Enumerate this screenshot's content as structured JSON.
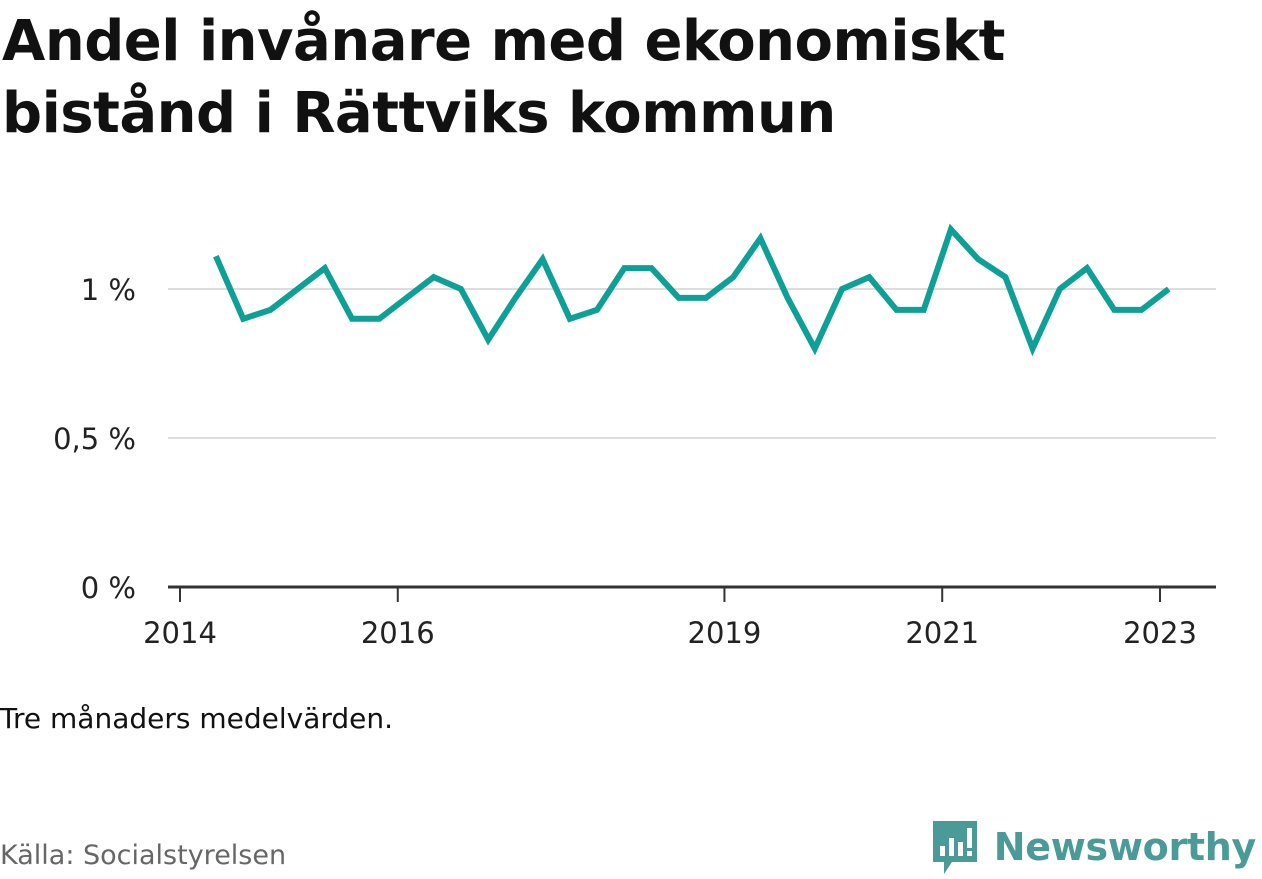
{
  "title": "Andel invånare med ekonomiskt bistånd i Rättviks kommun",
  "note": "Tre månaders medelvärden.",
  "source": "Källa: Socialstyrelsen",
  "brand": {
    "name": "Newsworthy",
    "color": "#4a9b97"
  },
  "colors": {
    "line": "#0ea096",
    "grid": "#dddddd",
    "axis": "#333333"
  },
  "chart_data": {
    "type": "line",
    "title": "Andel invånare med ekonomiskt bistånd i Rättviks kommun",
    "xlabel": "",
    "ylabel": "",
    "ylim": [
      0,
      1.25
    ],
    "y_ticks": [
      0,
      0.5,
      1
    ],
    "y_tick_labels": [
      "0 %",
      "0,5 %",
      "1 %"
    ],
    "x_ticks": [
      2014,
      2016,
      2019,
      2021,
      2023
    ],
    "x_tick_labels": [
      "2014",
      "2016",
      "2019",
      "2021",
      "2023"
    ],
    "grid": true,
    "series": [
      {
        "x": [
          2014.33,
          2014.58,
          2014.83,
          2015.08,
          2015.33,
          2015.58,
          2015.83,
          2016.08,
          2016.33,
          2016.58,
          2016.83,
          2017.08,
          2017.33,
          2017.58,
          2017.83,
          2018.08,
          2018.33,
          2018.58,
          2018.83,
          2019.08,
          2019.33,
          2019.58,
          2019.83,
          2020.08,
          2020.33,
          2020.58,
          2020.83,
          2021.08,
          2021.33,
          2021.58,
          2021.83,
          2022.08,
          2022.33,
          2022.58,
          2022.83,
          2023.08
        ],
        "values": [
          1.11,
          0.9,
          0.93,
          1.0,
          1.07,
          0.9,
          0.9,
          0.97,
          1.04,
          1.0,
          0.83,
          0.97,
          1.1,
          0.9,
          0.93,
          1.07,
          1.07,
          0.97,
          0.97,
          1.04,
          1.17,
          0.97,
          0.8,
          1.0,
          1.04,
          0.93,
          0.93,
          1.2,
          1.1,
          1.04,
          0.8,
          1.0,
          1.07,
          0.93,
          0.93,
          1.0
        ]
      }
    ]
  }
}
